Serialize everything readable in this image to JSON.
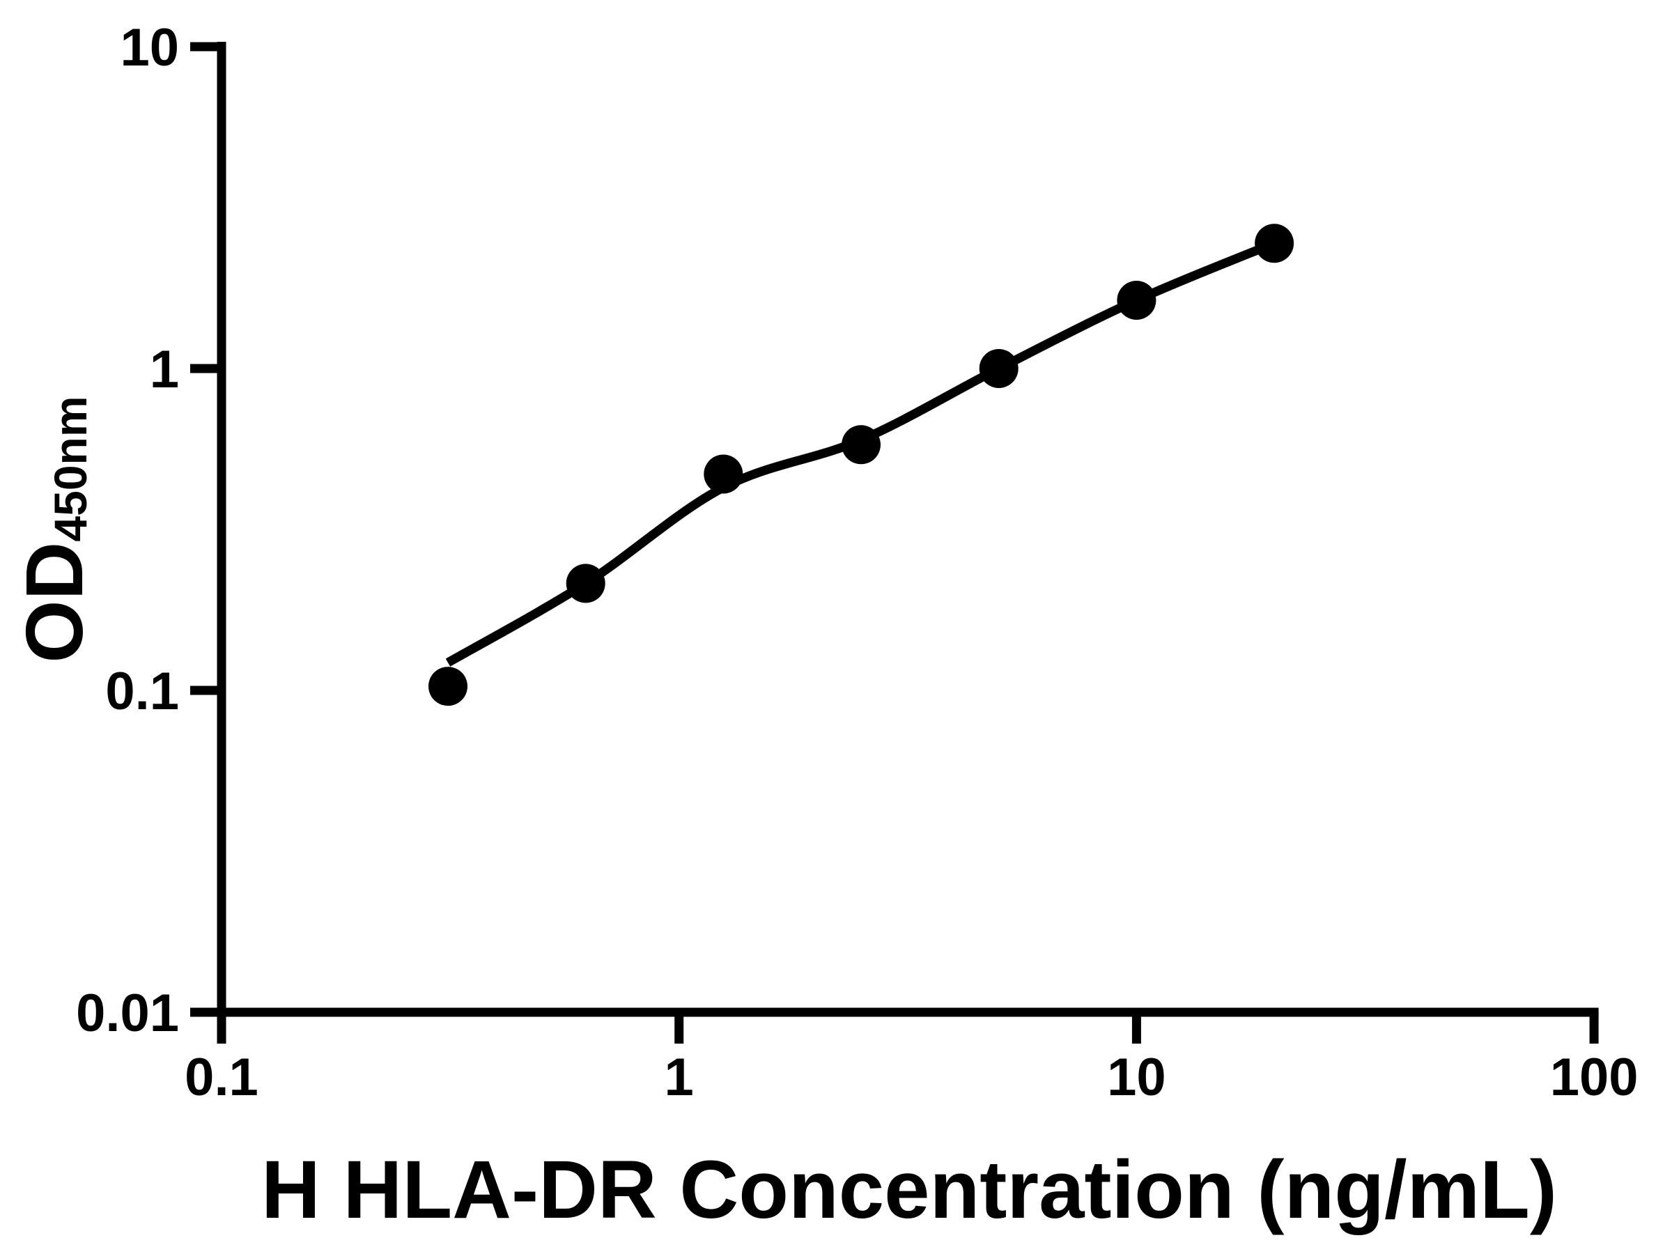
{
  "page": {
    "background": "#ffffff",
    "foreground": "#000000"
  },
  "chart_data": {
    "type": "scatter",
    "title": "",
    "xlabel": "H HLA-DR Concentration (ng/mL)",
    "ylabel_main": "OD",
    "ylabel_sub": "450nm",
    "x_scale": "log",
    "y_scale": "log",
    "xlim": [
      0.1,
      100
    ],
    "ylim": [
      0.01,
      10
    ],
    "grid": false,
    "legend": "none",
    "x_ticks": [
      {
        "value": 0.1,
        "label": "0.1"
      },
      {
        "value": 1,
        "label": "1"
      },
      {
        "value": 10,
        "label": "10"
      },
      {
        "value": 100,
        "label": "100"
      }
    ],
    "y_ticks": [
      {
        "value": 10,
        "label": "10"
      },
      {
        "value": 1,
        "label": "1"
      },
      {
        "value": 0.1,
        "label": "0.1"
      },
      {
        "value": 0.01,
        "label": "0.01"
      }
    ],
    "series": [
      {
        "name": "standard-curve-points",
        "marker": "filled-circle",
        "color": "#000000",
        "points": [
          {
            "x": 0.3125,
            "od": 0.103
          },
          {
            "x": 0.625,
            "od": 0.215
          },
          {
            "x": 1.25,
            "od": 0.47
          },
          {
            "x": 2.5,
            "od": 0.58
          },
          {
            "x": 5,
            "od": 1.0
          },
          {
            "x": 10,
            "od": 1.63
          },
          {
            "x": 20,
            "od": 2.45
          }
        ]
      }
    ],
    "fit_curve": {
      "name": "4pl-fit-line",
      "color": "#000000",
      "samples": [
        {
          "x": 0.3125,
          "od": 0.122
        },
        {
          "x": 0.625,
          "od": 0.215
        },
        {
          "x": 1.25,
          "od": 0.427
        },
        {
          "x": 2.5,
          "od": 0.6
        },
        {
          "x": 5,
          "od": 1.0
        },
        {
          "x": 10,
          "od": 1.63
        },
        {
          "x": 20,
          "od": 2.45
        }
      ]
    },
    "colors": {
      "axis": "#000000",
      "marker": "#000000",
      "line": "#000000"
    }
  }
}
